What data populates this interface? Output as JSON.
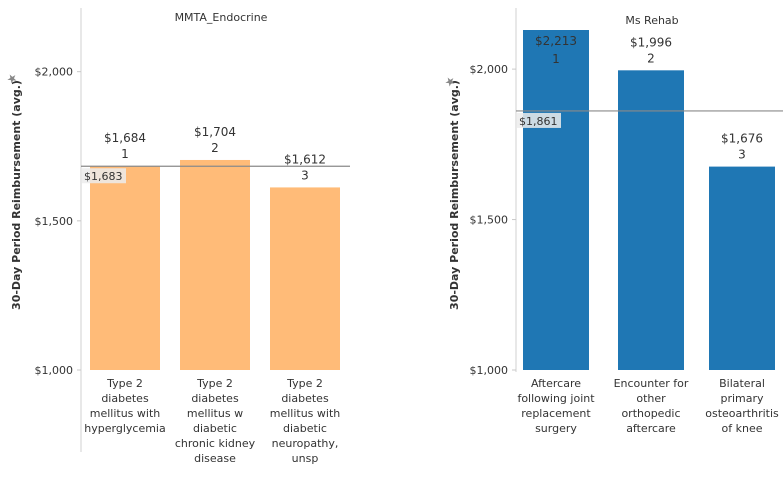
{
  "chart_data": [
    {
      "type": "bar",
      "title": "MMTA_Endocrine",
      "ylabel": "30-Day Period Reimbursement (avg.)",
      "ylim": [
        1000,
        2200
      ],
      "yticks": [
        1000,
        1500,
        2000
      ],
      "ytick_labels": [
        "$1,000",
        "$1,500",
        "$2,000"
      ],
      "color": "#ffbb78",
      "categories": [
        [
          "Type 2",
          "diabetes",
          "mellitus with",
          "hyperglycemia"
        ],
        [
          "Type 2",
          "diabetes",
          "mellitus w",
          "diabetic",
          "chronic kidney",
          "disease"
        ],
        [
          "Type 2",
          "diabetes",
          "mellitus with",
          "diabetic",
          "neuropathy,",
          "unsp"
        ]
      ],
      "values": [
        1684,
        1704,
        1612
      ],
      "value_labels": [
        "$1,684",
        "$1,704",
        "$1,612"
      ],
      "ranks": [
        "1",
        "2",
        "3"
      ],
      "reference_line": {
        "value": 1683,
        "label": "$1,683"
      }
    },
    {
      "type": "bar",
      "title": "Ms Rehab",
      "ylabel": "30-Day Period Reimbursement (avg.)",
      "ylim": [
        1000,
        2130
      ],
      "yticks": [
        1000,
        1500,
        2000
      ],
      "ytick_labels": [
        "$1,000",
        "$1,500",
        "$2,000"
      ],
      "color": "#1f77b4",
      "categories": [
        [
          "Aftercare",
          "following joint",
          "replacement",
          "surgery"
        ],
        [
          "Encounter for",
          "other",
          "orthopedic",
          "aftercare"
        ],
        [
          "Bilateral",
          "primary",
          "osteoarthritis",
          "of knee"
        ]
      ],
      "values": [
        2213,
        1996,
        1676
      ],
      "value_labels": [
        "$2,213",
        "$1,996",
        "$1,676"
      ],
      "ranks": [
        "1",
        "2",
        "3"
      ],
      "reference_line": {
        "value": 1861,
        "label": "$1,861"
      }
    }
  ]
}
